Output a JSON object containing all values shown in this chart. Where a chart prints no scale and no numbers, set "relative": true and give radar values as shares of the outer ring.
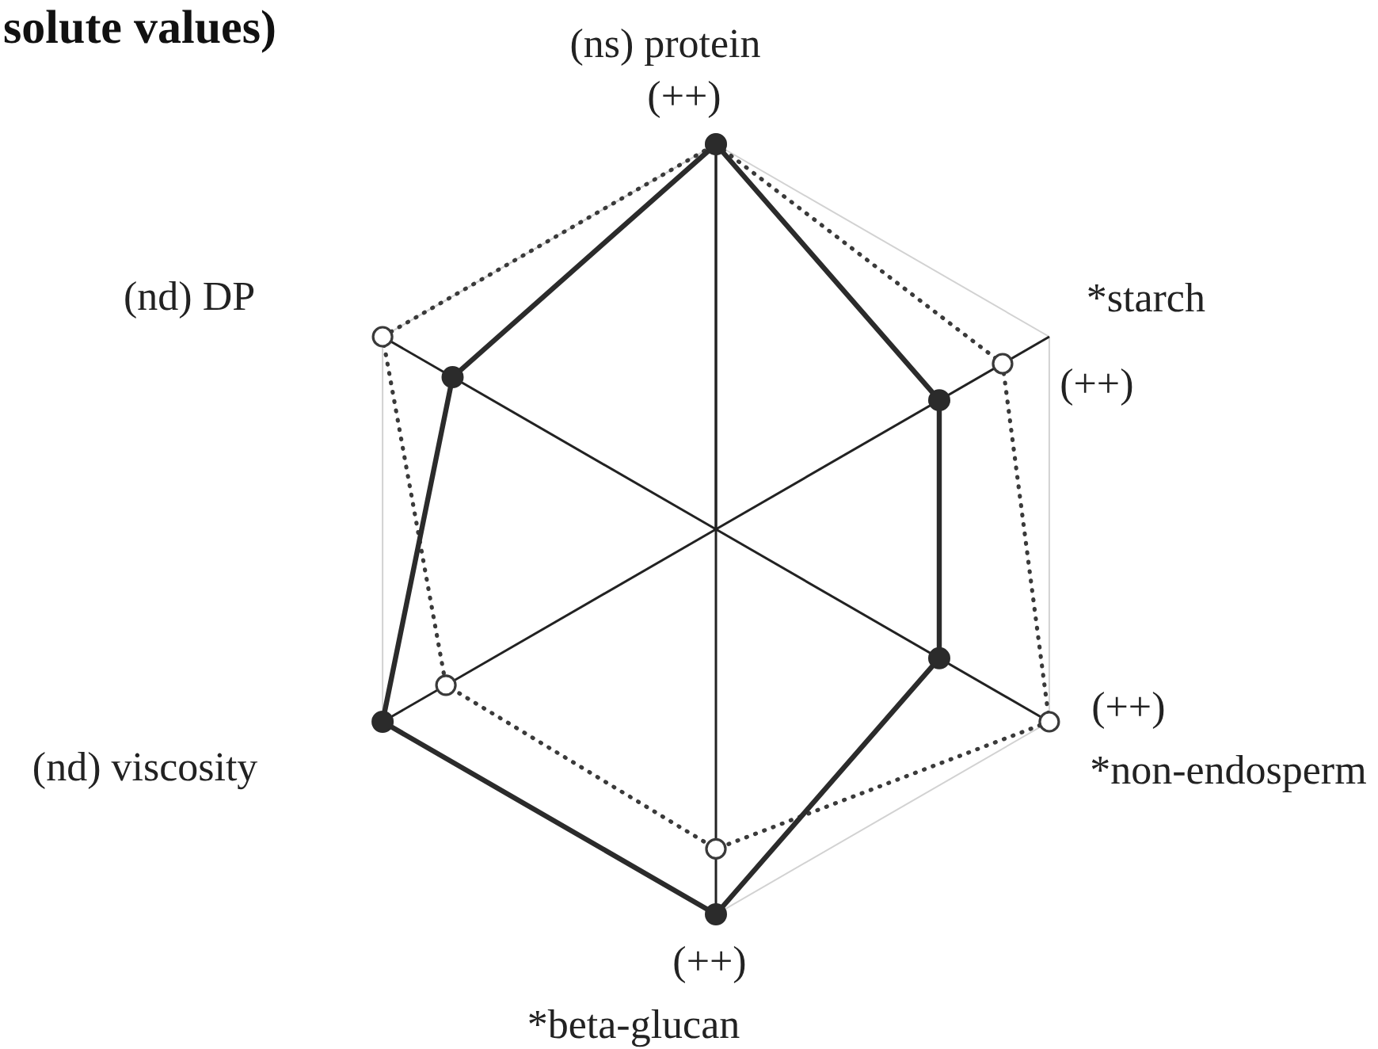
{
  "chart_data": {
    "type": "radar",
    "title": "solute values)",
    "categories": [
      "(ns) protein",
      "*starch",
      "*non-endosperm",
      "*beta-glucan",
      "(nd) viscosity",
      "(nd) DP"
    ],
    "series": [
      {
        "color": "#3a3a3a",
        "values": [
          1,
          0.86,
          1,
          0.83,
          0.81,
          1
        ],
        "line_style": "dotted",
        "marker": "circle"
      },
      {
        "color": "#2b2b2b",
        "values": [
          1,
          0.67,
          0.67,
          1,
          1,
          0.79
        ],
        "line_style": "solid",
        "marker": "circle"
      }
    ],
    "relative": true,
    "grid": true,
    "annotations": [
      {
        "text": "(++)",
        "x": "(ns) protein"
      },
      {
        "text": "(++)",
        "x": "*starch"
      },
      {
        "text": "(++)",
        "x": "*non-endosperm"
      },
      {
        "text": "(++)",
        "x": "*beta-glucan"
      }
    ]
  }
}
